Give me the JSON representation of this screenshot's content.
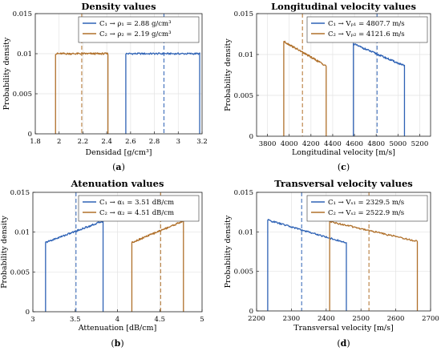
{
  "colors": {
    "c1": "#2E62B5",
    "c2": "#B0702A"
  },
  "chart_data": [
    {
      "id": "a",
      "type": "line",
      "title": "Density values",
      "xlabel": "Densidad [g/cm³]",
      "ylabel": "Probability density",
      "caption": "a",
      "xlim": [
        1.8,
        3.2
      ],
      "ylim": [
        0,
        0.015
      ],
      "xticks": [
        1.8,
        2,
        2.2,
        2.4,
        2.6,
        2.8,
        3,
        3.2
      ],
      "xtick_labels": [
        "1.8",
        "2",
        "2.2",
        "2.4",
        "2.6",
        "2.8",
        "3",
        "3.2"
      ],
      "yticks": [
        0,
        0.005,
        0.01,
        0.015
      ],
      "ytick_labels": [
        "0",
        "0.005",
        "0.01",
        "0.015"
      ],
      "grid": true,
      "legend_position": "top-right",
      "series": [
        {
          "name": "C₁  →  ρ₁ = 2.88 g/cm³",
          "color": "#2E62B5",
          "kind": "uniform",
          "x0": 2.56,
          "x1": 3.18,
          "y0": 0.01,
          "y1": 0.01,
          "mean": 2.88
        },
        {
          "name": "C₂  →  ρ₂ = 2.19 g/cm³",
          "color": "#B0702A",
          "kind": "uniform",
          "x0": 1.97,
          "x1": 2.41,
          "y0": 0.01,
          "y1": 0.01,
          "mean": 2.19
        }
      ]
    },
    {
      "id": "c",
      "type": "line",
      "title": "Longitudinal velocity values",
      "xlabel": "Longitudinal velocity [m/s]",
      "ylabel": "Probability density",
      "caption": "c",
      "xlim": [
        3700,
        5300
      ],
      "ylim": [
        0,
        0.015
      ],
      "xticks": [
        3800,
        4000,
        4200,
        4400,
        4600,
        4800,
        5000,
        5200
      ],
      "xtick_labels": [
        "3800",
        "4000",
        "4200",
        "4400",
        "4600",
        "4800",
        "5000",
        "5200"
      ],
      "yticks": [
        0,
        0.005,
        0.01,
        0.015
      ],
      "ytick_labels": [
        "0",
        "0.005",
        "0.01",
        "0.015"
      ],
      "grid": true,
      "legend_position": "top-right",
      "series": [
        {
          "name": "C₁  →  Vₚ₁ = 4807.7 m/s",
          "color": "#2E62B5",
          "kind": "decreasing",
          "x0": 4590,
          "x1": 5060,
          "y0": 0.0113,
          "y1": 0.0086,
          "mean": 4807.7
        },
        {
          "name": "C₂  →  Vₚ₂ = 4121.6 m/s",
          "color": "#B0702A",
          "kind": "decreasing",
          "x0": 3950,
          "x1": 4340,
          "y0": 0.0116,
          "y1": 0.0086,
          "mean": 4121.6
        }
      ]
    },
    {
      "id": "b",
      "type": "line",
      "title": "Atenuation values",
      "xlabel": "Attenuation [dB/cm]",
      "ylabel": "Probability density",
      "caption": "b",
      "xlim": [
        3,
        5
      ],
      "ylim": [
        0,
        0.015
      ],
      "xticks": [
        3,
        3.5,
        4,
        4.5,
        5
      ],
      "xtick_labels": [
        "3",
        "3.5",
        "4",
        "4.5",
        "5"
      ],
      "yticks": [
        0,
        0.005,
        0.01,
        0.015
      ],
      "ytick_labels": [
        "0",
        "0.005",
        "0.01",
        "0.015"
      ],
      "grid": true,
      "legend_position": "top-right",
      "series": [
        {
          "name": "C₁  →  α₁ = 3.51 dB/cm",
          "color": "#2E62B5",
          "kind": "increasing",
          "x0": 3.15,
          "x1": 3.83,
          "y0": 0.0087,
          "y1": 0.0114,
          "mean": 3.51
        },
        {
          "name": "C₂  →  α₂ = 4.51 dB/cm",
          "color": "#B0702A",
          "kind": "increasing",
          "x0": 4.17,
          "x1": 4.78,
          "y0": 0.0087,
          "y1": 0.0114,
          "mean": 4.51
        }
      ]
    },
    {
      "id": "d",
      "type": "line",
      "title": "Transversal velocity values",
      "xlabel": "Transversal velocity [m/s]",
      "ylabel": "Probability density",
      "caption": "d",
      "xlim": [
        2200,
        2700
      ],
      "ylim": [
        0,
        0.015
      ],
      "xticks": [
        2200,
        2300,
        2400,
        2500,
        2600,
        2700
      ],
      "xtick_labels": [
        "2200",
        "2300",
        "2400",
        "2500",
        "2600",
        "2700"
      ],
      "yticks": [
        0,
        0.005,
        0.01,
        0.015
      ],
      "ytick_labels": [
        "0",
        "0.005",
        "0.01",
        "0.015"
      ],
      "grid": true,
      "legend_position": "top-right",
      "series": [
        {
          "name": "C₁  →  Vₛ₁ = 2329.5 m/s",
          "color": "#2E62B5",
          "kind": "decreasing",
          "x0": 2232,
          "x1": 2458,
          "y0": 0.0115,
          "y1": 0.0086,
          "mean": 2329.5
        },
        {
          "name": "C₂  →  Vₛ₂ = 2522.9 m/s",
          "color": "#B0702A",
          "kind": "decreasing",
          "x0": 2410,
          "x1": 2662,
          "y0": 0.0113,
          "y1": 0.0088,
          "mean": 2522.9
        }
      ]
    }
  ]
}
